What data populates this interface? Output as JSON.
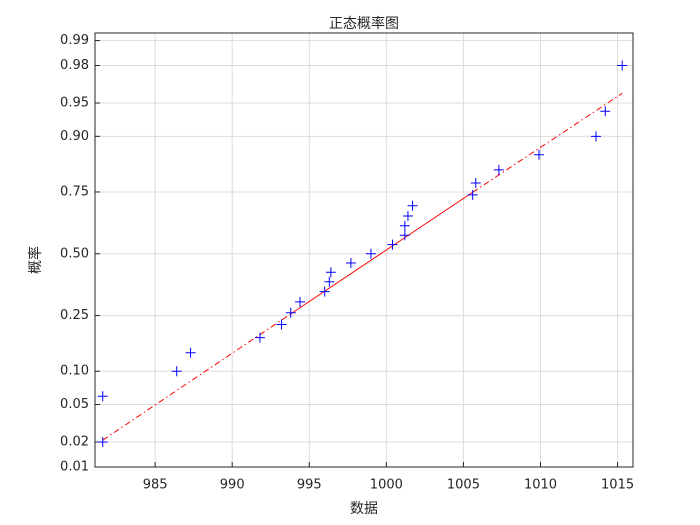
{
  "chart_data": {
    "type": "normal-probability",
    "title": "正态概率图",
    "xlabel": "数据",
    "ylabel": "概率",
    "yscale": "normal-probability",
    "grid": true,
    "xlim": [
      981.1,
      1016.0
    ],
    "ylim": [
      0.01,
      0.992
    ],
    "xticks": [
      985,
      990,
      995,
      1000,
      1005,
      1010,
      1015
    ],
    "yticks": [
      0.01,
      0.02,
      0.05,
      {
        "value": 0.1,
        "label": "0.10"
      },
      0.25,
      {
        "value": 0.5,
        "label": "0.50"
      },
      0.75,
      {
        "value": 0.9,
        "label": "0.90"
      },
      0.95,
      0.98,
      0.99
    ],
    "series": [
      {
        "color": "#0000ff",
        "x": [
          981.6,
          981.6,
          986.4,
          987.3,
          991.8,
          993.2,
          993.8,
          994.4,
          996.0,
          996.3,
          996.4,
          997.7,
          999.0,
          1000.4,
          1001.2,
          1001.2,
          1001.4,
          1001.7,
          1005.6,
          1005.8,
          1007.3,
          1009.9,
          1013.6,
          1014.2,
          1015.3
        ],
        "values": [
          0.02,
          0.06,
          0.1,
          0.14,
          0.18,
          0.22,
          0.26,
          0.3,
          0.34,
          0.38,
          0.42,
          0.46,
          0.5,
          0.54,
          0.58,
          0.62,
          0.66,
          0.7,
          0.74,
          0.78,
          0.82,
          0.86,
          0.9,
          0.94,
          0.98
        ]
      }
    ],
    "reference_line": {
      "color": "#ff0000",
      "x": [
        981.6,
        993.8,
        1005.6,
        1015.3
      ],
      "values": [
        0.021,
        0.256,
        0.749,
        0.96
      ]
    }
  }
}
